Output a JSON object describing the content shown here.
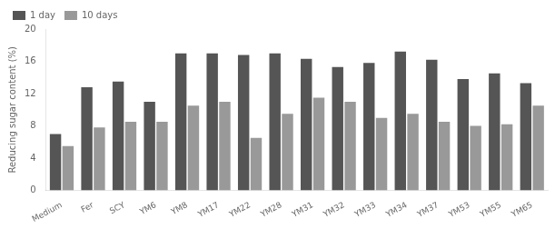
{
  "chart_data": {
    "type": "bar",
    "ylabel": "Reducing sugar content (%)",
    "categories": [
      "Medium",
      "Fer",
      "SCY",
      "YM6",
      "YM8",
      "YM17",
      "YM22",
      "YM28",
      "YM31",
      "YM32",
      "YM33",
      "YM34",
      "YM37",
      "YM53",
      "YM55",
      "YM65"
    ],
    "series": [
      {
        "name": "1 day",
        "color": "#555555",
        "values": [
          7.0,
          12.8,
          13.5,
          11.0,
          17.0,
          17.0,
          16.8,
          17.0,
          16.3,
          15.3,
          15.8,
          17.2,
          16.2,
          13.8,
          14.5,
          13.3
        ]
      },
      {
        "name": "10 days",
        "color": "#999999",
        "values": [
          5.5,
          7.8,
          8.5,
          8.5,
          10.5,
          11.0,
          6.5,
          9.5,
          11.5,
          11.0,
          9.0,
          9.5,
          8.5,
          8.0,
          8.2,
          10.5
        ]
      }
    ],
    "ylim": [
      0,
      20
    ],
    "yticks": [
      0,
      4,
      8,
      12,
      16,
      20
    ],
    "legend": "upper left",
    "grid": false
  }
}
